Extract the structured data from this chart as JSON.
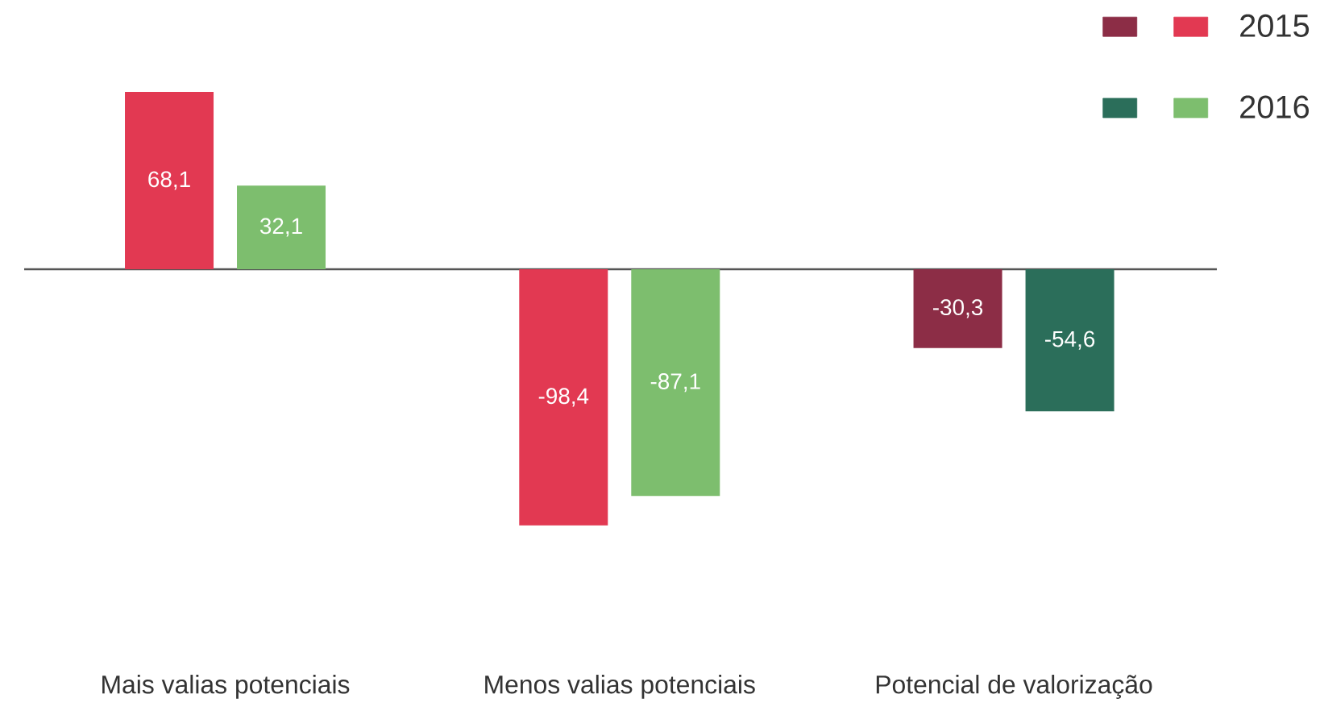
{
  "chart_data": {
    "type": "bar",
    "categories": [
      "Mais valias potenciais",
      "Menos valias potenciais",
      "Potencial de valorização"
    ],
    "series": [
      {
        "name": "2015",
        "colors": [
          "#e23952",
          "#e23952",
          "#8c2d46"
        ],
        "values": [
          68.1,
          -98.4,
          -30.3
        ],
        "value_labels": [
          "68,1",
          "-98,4",
          "-30,3"
        ]
      },
      {
        "name": "2016",
        "colors": [
          "#7dbe6e",
          "#7dbe6e",
          "#2b6e5a"
        ],
        "values": [
          32.1,
          -87.1,
          -54.6
        ],
        "value_labels": [
          "32,1",
          "-87,1",
          "-54,6"
        ]
      }
    ],
    "legend": "top right"
  }
}
